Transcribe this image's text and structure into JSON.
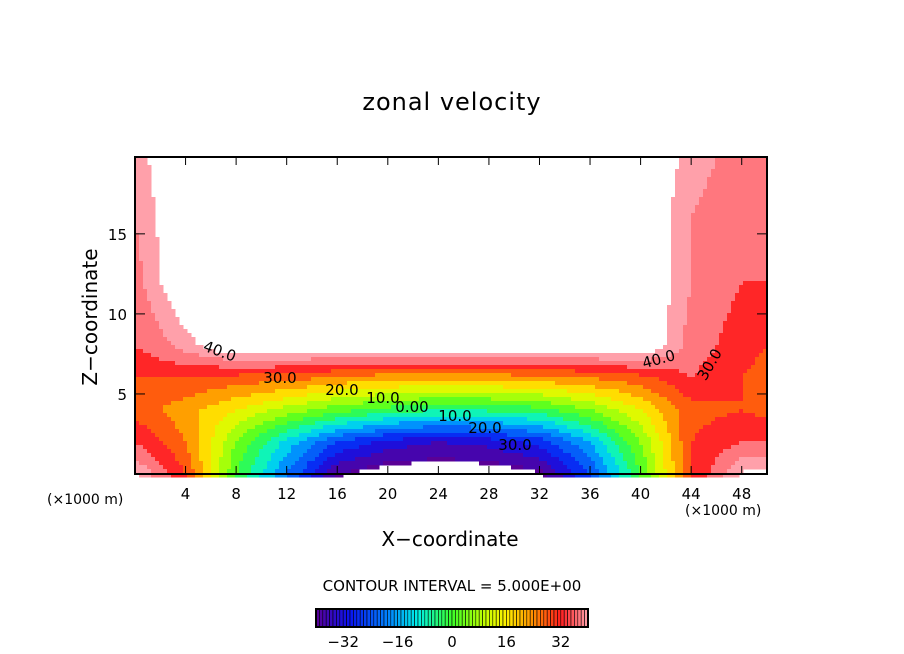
{
  "chart_data": {
    "type": "heatmap",
    "subtype": "filled-contour",
    "title": "zonal velocity",
    "xlabel": "X−coordinate",
    "ylabel": "Z−coordinate",
    "x_unit_label": "(×1000 m)",
    "y_unit_label": "(×1000 m)",
    "xlim": [
      0,
      50
    ],
    "ylim": [
      0,
      19.8
    ],
    "x_ticks": [
      "4",
      "8",
      "12",
      "16",
      "20",
      "24",
      "28",
      "32",
      "36",
      "40",
      "44",
      "48"
    ],
    "y_ticks": [
      "5",
      "10",
      "15"
    ],
    "contour_interval_label": "CONTOUR INTERVAL = 5.000E+00",
    "colorbar": {
      "range": [
        -40,
        40
      ],
      "ticks": [
        "−32",
        "−16",
        "0",
        "16",
        "32"
      ]
    },
    "contour_labels": [
      "40.0",
      "30.0",
      "20.0",
      "10.0",
      "0.00",
      "10.0",
      "20.0",
      "30.0",
      "40.0",
      "30.0"
    ],
    "grid_x": [
      0,
      4,
      8,
      12,
      16,
      20,
      24,
      28,
      32,
      36,
      40,
      44,
      48,
      50
    ],
    "grid_z": [
      0,
      2,
      4,
      6,
      8,
      12,
      16,
      19.8
    ],
    "values": [
      [
        45,
        30,
        0,
        -20,
        -40,
        -45,
        -45,
        -45,
        -42,
        -25,
        0,
        30,
        45,
        45
      ],
      [
        35,
        25,
        5,
        -12,
        -25,
        -32,
        -35,
        -33,
        -28,
        -15,
        5,
        30,
        35,
        35
      ],
      [
        28,
        22,
        15,
        8,
        2,
        -2,
        -5,
        -4,
        -2,
        5,
        15,
        28,
        30,
        28
      ],
      [
        30,
        30,
        28,
        27,
        24,
        22,
        22,
        22,
        23,
        25,
        28,
        35,
        30,
        28
      ],
      [
        35,
        42,
        50,
        50,
        50,
        50,
        50,
        50,
        50,
        50,
        50,
        38,
        32,
        30
      ],
      [
        38,
        50,
        50,
        50,
        50,
        50,
        50,
        50,
        50,
        50,
        50,
        40,
        35,
        35
      ],
      [
        40,
        50,
        50,
        50,
        50,
        50,
        50,
        50,
        50,
        50,
        50,
        40,
        37,
        38
      ],
      [
        42,
        50,
        50,
        50,
        50,
        50,
        50,
        50,
        50,
        50,
        50,
        42,
        38,
        40
      ]
    ]
  }
}
